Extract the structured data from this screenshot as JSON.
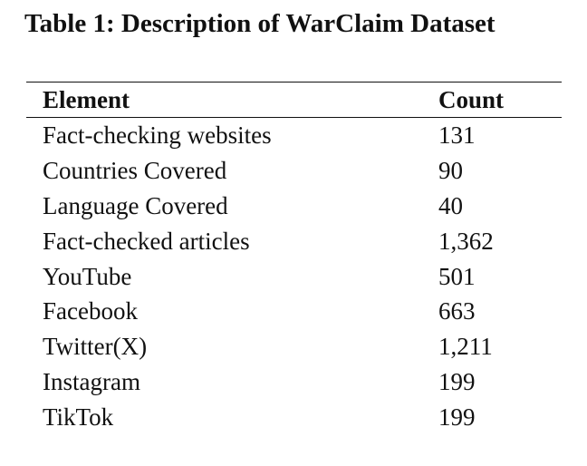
{
  "caption": "Table 1: Description of WarClaim Dataset",
  "table": {
    "headers": [
      "Element",
      "Count"
    ],
    "rows": [
      {
        "element": "Fact-checking websites",
        "count": "131"
      },
      {
        "element": "Countries Covered",
        "count": "90"
      },
      {
        "element": "Language Covered",
        "count": "40"
      },
      {
        "element": "Fact-checked articles",
        "count": "1,362"
      },
      {
        "element": "YouTube",
        "count": "501"
      },
      {
        "element": "Facebook",
        "count": "663"
      },
      {
        "element": "Twitter(X)",
        "count": "1,211"
      },
      {
        "element": "Instagram",
        "count": "199"
      },
      {
        "element": "TikTok",
        "count": "199"
      }
    ]
  }
}
